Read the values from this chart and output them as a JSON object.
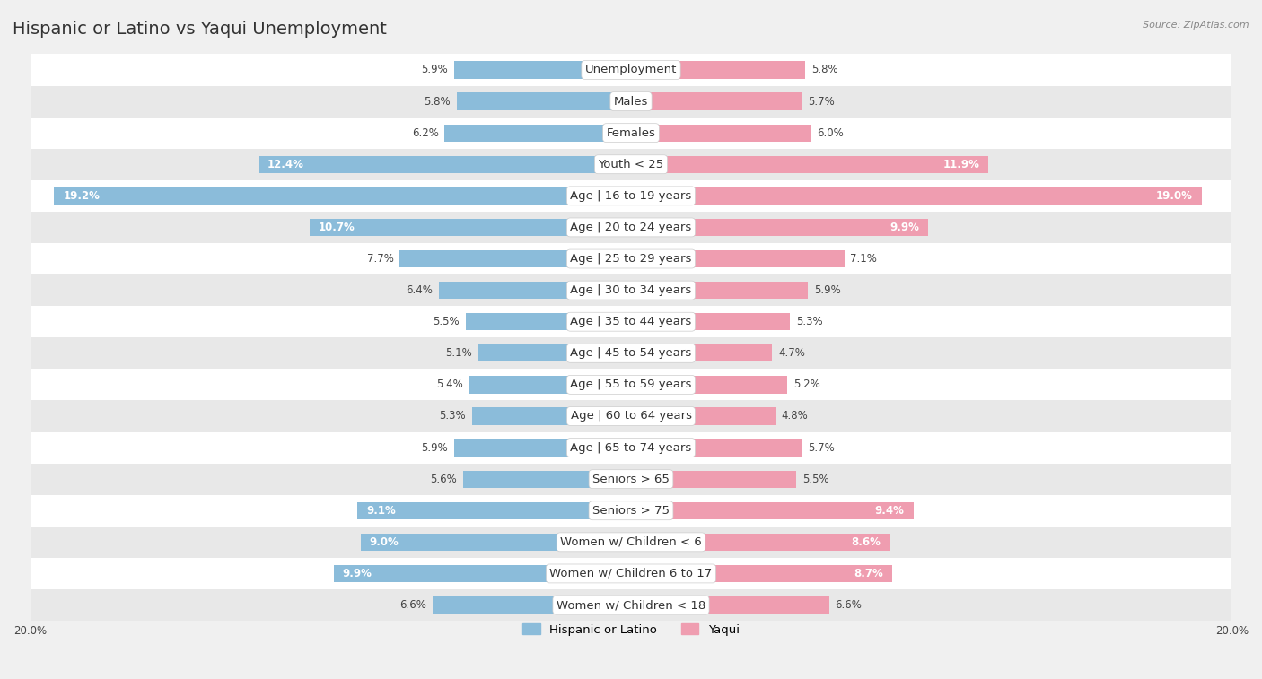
{
  "title": "Hispanic or Latino vs Yaqui Unemployment",
  "source": "Source: ZipAtlas.com",
  "categories": [
    "Unemployment",
    "Males",
    "Females",
    "Youth < 25",
    "Age | 16 to 19 years",
    "Age | 20 to 24 years",
    "Age | 25 to 29 years",
    "Age | 30 to 34 years",
    "Age | 35 to 44 years",
    "Age | 45 to 54 years",
    "Age | 55 to 59 years",
    "Age | 60 to 64 years",
    "Age | 65 to 74 years",
    "Seniors > 65",
    "Seniors > 75",
    "Women w/ Children < 6",
    "Women w/ Children 6 to 17",
    "Women w/ Children < 18"
  ],
  "hispanic_values": [
    5.9,
    5.8,
    6.2,
    12.4,
    19.2,
    10.7,
    7.7,
    6.4,
    5.5,
    5.1,
    5.4,
    5.3,
    5.9,
    5.6,
    9.1,
    9.0,
    9.9,
    6.6
  ],
  "yaqui_values": [
    5.8,
    5.7,
    6.0,
    11.9,
    19.0,
    9.9,
    7.1,
    5.9,
    5.3,
    4.7,
    5.2,
    4.8,
    5.7,
    5.5,
    9.4,
    8.6,
    8.7,
    6.6
  ],
  "hispanic_color": "#8BBCDA",
  "yaqui_color": "#EF9DB0",
  "background_color": "#f0f0f0",
  "row_light_color": "#ffffff",
  "row_dark_color": "#e8e8e8",
  "bar_height": 0.55,
  "xlim": 20.0,
  "legend_labels": [
    "Hispanic or Latino",
    "Yaqui"
  ],
  "title_fontsize": 14,
  "label_fontsize": 9.5,
  "value_fontsize": 8.5,
  "value_inside_threshold": 8.0
}
